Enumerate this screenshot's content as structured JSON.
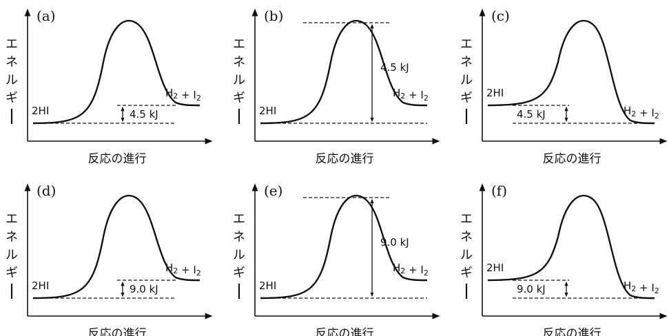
{
  "y_axis_label": [
    "エ",
    "ネ",
    "ル",
    "ギ",
    "ー"
  ],
  "x_axis_label": "反応の進行",
  "reactant_label": "2HI",
  "product_label": {
    "h": "H",
    "sub": "2",
    "plus": " + ",
    "i": "I",
    "sub2": "2"
  },
  "colors": {
    "ink": "#111111",
    "background": "#ffffff"
  },
  "panels": [
    {
      "id": "a",
      "tag": "(a)",
      "type": "endothermic",
      "energy_label": "4.5 kJ",
      "measure": "reaction"
    },
    {
      "id": "b",
      "tag": "(b)",
      "type": "endothermic",
      "energy_label": "4.5 kJ",
      "measure": "activation"
    },
    {
      "id": "c",
      "tag": "(c)",
      "type": "exothermic",
      "energy_label": "4.5 kJ",
      "measure": "reaction"
    },
    {
      "id": "d",
      "tag": "(d)",
      "type": "endothermic",
      "energy_label": "9.0 kJ",
      "measure": "reaction"
    },
    {
      "id": "e",
      "tag": "(e)",
      "type": "endothermic",
      "energy_label": "9.0 kJ",
      "measure": "activation"
    },
    {
      "id": "f",
      "tag": "(f)",
      "type": "exothermic",
      "energy_label": "9.0 kJ",
      "measure": "reaction"
    }
  ]
}
